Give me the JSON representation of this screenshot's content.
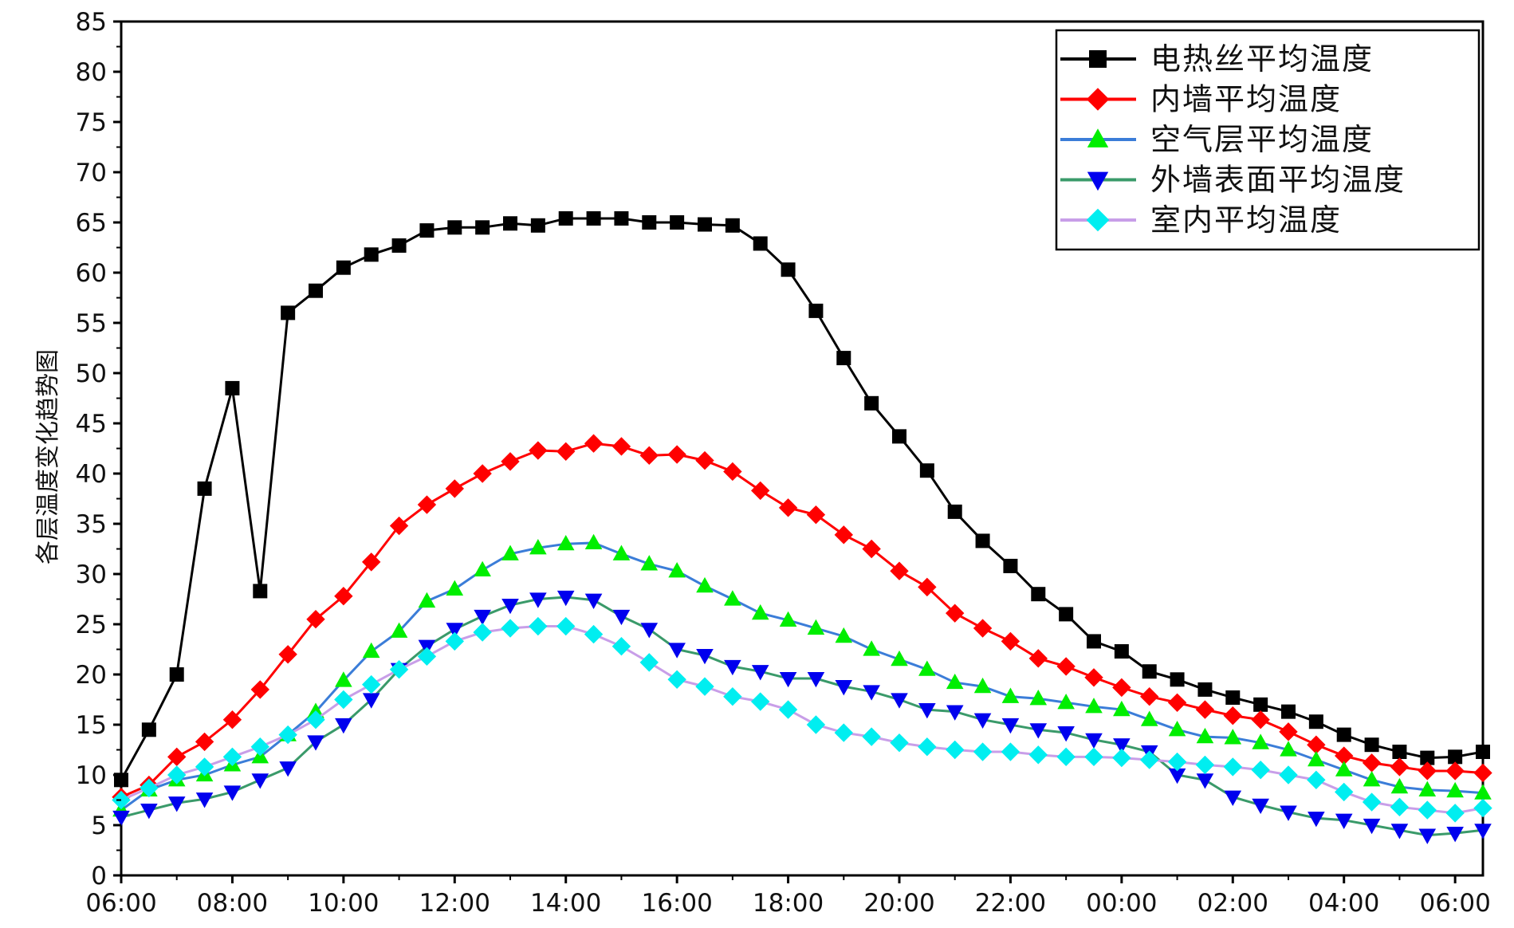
{
  "chart_data": {
    "type": "line",
    "title": "",
    "xlabel": "",
    "ylabel": "各层温度变化趋势图",
    "ylim": [
      0,
      85
    ],
    "yticks": [
      0,
      5,
      10,
      15,
      20,
      25,
      30,
      35,
      40,
      45,
      50,
      55,
      60,
      65,
      70,
      75,
      80,
      85
    ],
    "xlim": [
      0,
      24.5
    ],
    "xticks": [
      {
        "x": 0,
        "label": "06:00"
      },
      {
        "x": 2,
        "label": "08:00"
      },
      {
        "x": 4,
        "label": "10:00"
      },
      {
        "x": 6,
        "label": "12:00"
      },
      {
        "x": 8,
        "label": "14:00"
      },
      {
        "x": 10,
        "label": "16:00"
      },
      {
        "x": 12,
        "label": "18:00"
      },
      {
        "x": 14,
        "label": "20:00"
      },
      {
        "x": 16,
        "label": "22:00"
      },
      {
        "x": 18,
        "label": "00:00"
      },
      {
        "x": 20,
        "label": "02:00"
      },
      {
        "x": 22,
        "label": "04:00"
      },
      {
        "x": 24,
        "label": "06:00"
      }
    ],
    "x_step_hours": 0.5,
    "legend_position": "top-right",
    "series": [
      {
        "name": "电热丝平均温度",
        "color": "#000000",
        "marker": "square",
        "values": [
          9.5,
          14.5,
          20,
          38.5,
          48.5,
          28.3,
          56,
          58.2,
          60.5,
          61.8,
          62.7,
          64.2,
          64.5,
          64.5,
          64.9,
          64.7,
          65.4,
          65.4,
          65.4,
          65,
          65,
          64.8,
          64.7,
          62.9,
          60.3,
          56.2,
          51.5,
          47,
          43.7,
          40.3,
          36.2,
          33.3,
          30.8,
          28,
          26,
          23.3,
          22.3,
          20.3,
          19.5,
          18.5,
          17.7,
          17,
          16.3,
          15.3,
          14,
          13,
          12.3,
          11.7,
          11.8,
          12.3
        ]
      },
      {
        "name": "内墙平均温度",
        "color": "#ff0000",
        "marker": "diamond",
        "values": [
          7.8,
          9,
          11.8,
          13.3,
          15.5,
          18.5,
          22,
          25.5,
          27.8,
          31.2,
          34.8,
          36.9,
          38.5,
          40,
          41.2,
          42.3,
          42.2,
          43,
          42.7,
          41.8,
          41.9,
          41.3,
          40.2,
          38.3,
          36.6,
          35.9,
          33.9,
          32.5,
          30.3,
          28.7,
          26.1,
          24.6,
          23.3,
          21.6,
          20.8,
          19.7,
          18.7,
          17.8,
          17.2,
          16.5,
          15.9,
          15.5,
          14.3,
          13,
          11.9,
          11.2,
          10.8,
          10.4,
          10.4,
          10.2
        ]
      },
      {
        "name": "空气层平均温度",
        "color": "#3b7dd8",
        "marker": "triangle-up",
        "values": [
          6.5,
          8.5,
          9.5,
          10,
          11,
          11.8,
          14,
          16.3,
          19.4,
          22.3,
          24.3,
          27.3,
          28.5,
          30.4,
          32,
          32.6,
          33,
          33.1,
          32,
          31,
          30.3,
          28.8,
          27.5,
          26.1,
          25.4,
          24.6,
          23.8,
          22.5,
          21.5,
          20.5,
          19.2,
          18.8,
          17.8,
          17.6,
          17.2,
          16.8,
          16.5,
          15.5,
          14.5,
          13.8,
          13.7,
          13.2,
          12.5,
          11.5,
          10.5,
          9.5,
          8.8,
          8.5,
          8.4,
          8.2
        ],
        "marker_color": "#00ee00"
      },
      {
        "name": "外墙表面平均温度",
        "color": "#3a9a6a",
        "marker": "triangle-down",
        "values": [
          5.8,
          6.5,
          7.2,
          7.6,
          8.3,
          9.5,
          10.7,
          13.3,
          15,
          17.5,
          20.5,
          22.8,
          24.5,
          25.8,
          26.9,
          27.5,
          27.7,
          27.4,
          25.8,
          24.5,
          22.5,
          21.9,
          20.8,
          20.3,
          19.6,
          19.6,
          18.8,
          18.3,
          17.5,
          16.5,
          16.3,
          15.5,
          15,
          14.5,
          14.2,
          13.5,
          13,
          12.3,
          10,
          9.5,
          7.8,
          7,
          6.3,
          5.7,
          5.5,
          5,
          4.5,
          4,
          4.2,
          4.5
        ],
        "marker_color": "#0000ee"
      },
      {
        "name": "室内平均温度",
        "color": "#c89ee8",
        "marker": "diamond",
        "values": [
          7.5,
          8.7,
          10,
          10.8,
          11.8,
          12.8,
          14,
          15.5,
          17.5,
          19,
          20.5,
          21.8,
          23.3,
          24.2,
          24.6,
          24.8,
          24.8,
          24,
          22.8,
          21.2,
          19.5,
          18.8,
          17.8,
          17.3,
          16.5,
          15,
          14.2,
          13.8,
          13.2,
          12.8,
          12.5,
          12.3,
          12.3,
          12,
          11.8,
          11.8,
          11.7,
          11.5,
          11.3,
          11,
          10.8,
          10.5,
          10,
          9.5,
          8.3,
          7.3,
          6.8,
          6.5,
          6.2,
          6.7
        ],
        "marker_color": "#00eef0"
      }
    ]
  }
}
